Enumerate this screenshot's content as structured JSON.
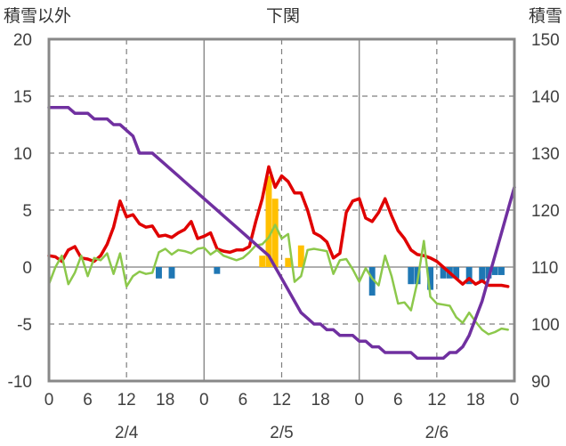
{
  "chart_data": {
    "type": "combo",
    "title": "下関",
    "ylabel_left": "積雪以外",
    "ylabel_right": "積雪",
    "ylim_left": [
      -10,
      20
    ],
    "yticks_left": [
      -10,
      -5,
      0,
      5,
      10,
      15,
      20
    ],
    "ylim_right": [
      90,
      150
    ],
    "yticks_right": [
      90,
      100,
      110,
      120,
      130,
      140,
      150
    ],
    "xlim_hours": [
      0,
      72
    ],
    "x_tick_labels": [
      "0",
      "6",
      "12",
      "18",
      "0",
      "6",
      "12",
      "18",
      "0",
      "6",
      "12",
      "18",
      "0"
    ],
    "date_labels": [
      "2/4",
      "2/5",
      "2/6"
    ],
    "grid": "dashed vertical lines at 12h, dashed horizontal lines at 5-unit steps",
    "series": [
      {
        "type": "line",
        "color": "#e00000",
        "axis": "left",
        "x": [
          0,
          1,
          2,
          3,
          4,
          5,
          6,
          7,
          8,
          9,
          10,
          11,
          12,
          13,
          14,
          15,
          16,
          17,
          18,
          19,
          20,
          21,
          22,
          23,
          24,
          25,
          26,
          27,
          28,
          29,
          30,
          31,
          32,
          33,
          34,
          35,
          36,
          37,
          38,
          39,
          40,
          41,
          42,
          43,
          44,
          45,
          46,
          47,
          48,
          49,
          50,
          51,
          52,
          53,
          54,
          55,
          56,
          57,
          58,
          59,
          60,
          61,
          62,
          63,
          64,
          65,
          66,
          67,
          68,
          69,
          70,
          71
        ],
        "values": [
          1,
          0.9,
          0.5,
          1.5,
          1.8,
          0.8,
          0.7,
          0.5,
          1,
          2,
          3.5,
          5.8,
          4.4,
          4.6,
          3.8,
          3.5,
          3.6,
          2.7,
          2.8,
          2.6,
          3,
          3.3,
          4,
          2.5,
          2.7,
          3,
          1.6,
          1.4,
          1.3,
          1.5,
          1.5,
          1.8,
          4,
          6,
          8.8,
          7,
          8,
          7.5,
          6.5,
          6.5,
          5,
          3,
          2.7,
          2.2,
          0.8,
          1.2,
          4.8,
          5.8,
          6,
          4.3,
          4,
          4.8,
          6,
          4.5,
          3.2,
          2.5,
          1.5,
          1.1,
          1,
          0.8,
          0.5,
          0,
          -0.5,
          -1,
          -1.5,
          -1,
          -1.5,
          -1.2,
          -1.6,
          -1.6,
          -1.6,
          -1.7
        ]
      },
      {
        "type": "line",
        "color": "#8cc84b",
        "axis": "left",
        "x": [
          0,
          1,
          2,
          3,
          4,
          5,
          6,
          7,
          8,
          9,
          10,
          11,
          12,
          13,
          14,
          15,
          16,
          17,
          18,
          19,
          20,
          21,
          22,
          23,
          24,
          25,
          26,
          27,
          28,
          29,
          30,
          31,
          32,
          33,
          34,
          35,
          36,
          37,
          38,
          39,
          40,
          41,
          42,
          43,
          44,
          45,
          46,
          47,
          48,
          49,
          50,
          51,
          52,
          53,
          54,
          55,
          56,
          57,
          58,
          59,
          60,
          61,
          62,
          63,
          64,
          65,
          66,
          67,
          68,
          69,
          70,
          71
        ],
        "values": [
          -1.5,
          0,
          1,
          -1.5,
          -0.5,
          1,
          -0.8,
          0.8,
          0.6,
          1.2,
          -0.6,
          1.2,
          -1.7,
          -0.8,
          -0.4,
          -0.6,
          -0.5,
          1.3,
          1.6,
          1.1,
          1.5,
          1.4,
          1.2,
          1.6,
          1.7,
          1.1,
          1.5,
          1,
          0.8,
          0.6,
          0.8,
          1.3,
          1.9,
          2,
          2.6,
          3.7,
          2.5,
          2.9,
          -1.3,
          -0.8,
          1.5,
          1.6,
          1.5,
          1.4,
          -0.6,
          0.6,
          0.7,
          -0.2,
          -1.3,
          -0.1,
          -1,
          -1.6,
          1,
          -0.8,
          -3.2,
          -3.1,
          -3.8,
          -1.3,
          2.3,
          -2.6,
          -3.2,
          -3.3,
          -3.4,
          -4.4,
          -4.9,
          -4,
          -4.8,
          -5.5,
          -5.9,
          -5.7,
          -5.4,
          -5.5
        ]
      },
      {
        "type": "line",
        "color": "#7030a0",
        "axis": "right",
        "x": [
          0,
          1,
          2,
          3,
          4,
          5,
          6,
          7,
          8,
          9,
          10,
          11,
          12,
          13,
          14,
          15,
          16,
          17,
          18,
          19,
          20,
          21,
          22,
          23,
          24,
          25,
          26,
          27,
          28,
          29,
          30,
          31,
          32,
          33,
          34,
          35,
          36,
          37,
          38,
          39,
          40,
          41,
          42,
          43,
          44,
          45,
          46,
          47,
          48,
          49,
          50,
          51,
          52,
          53,
          54,
          55,
          56,
          57,
          58,
          59,
          60,
          61,
          62,
          63,
          64,
          65,
          66,
          67,
          68,
          69,
          70,
          71,
          72
        ],
        "values": [
          138,
          138,
          138,
          138,
          137,
          137,
          137,
          136,
          136,
          136,
          135,
          135,
          134,
          133,
          130,
          130,
          130,
          129,
          128,
          127,
          126,
          125,
          124,
          123,
          122,
          121,
          120,
          119,
          118,
          117,
          116,
          115,
          114,
          113,
          112,
          110,
          108,
          106,
          104,
          102,
          101,
          100,
          100,
          99,
          99,
          98,
          98,
          98,
          97,
          97,
          96,
          96,
          95,
          95,
          95,
          95,
          95,
          94,
          94,
          94,
          94,
          94,
          95,
          95,
          96,
          98,
          101,
          104,
          108,
          112,
          116,
          120,
          124
        ]
      },
      {
        "type": "bar",
        "color": "#ffc000",
        "axis": "left",
        "x": [
          33,
          34,
          35,
          37,
          39
        ],
        "values": [
          1,
          8,
          6,
          0.8,
          1.9
        ]
      },
      {
        "type": "bar",
        "color": "#1f77b4",
        "axis": "left",
        "x": [
          17,
          19,
          26,
          50,
          56,
          57,
          59,
          61,
          62,
          63,
          65,
          67,
          68,
          69,
          70
        ],
        "values": [
          -1,
          -1,
          -0.6,
          -2.5,
          -1.5,
          -1.5,
          -2,
          -1,
          -1,
          -1,
          -1.5,
          -1.2,
          -1,
          -0.7,
          -0.7
        ]
      }
    ]
  }
}
